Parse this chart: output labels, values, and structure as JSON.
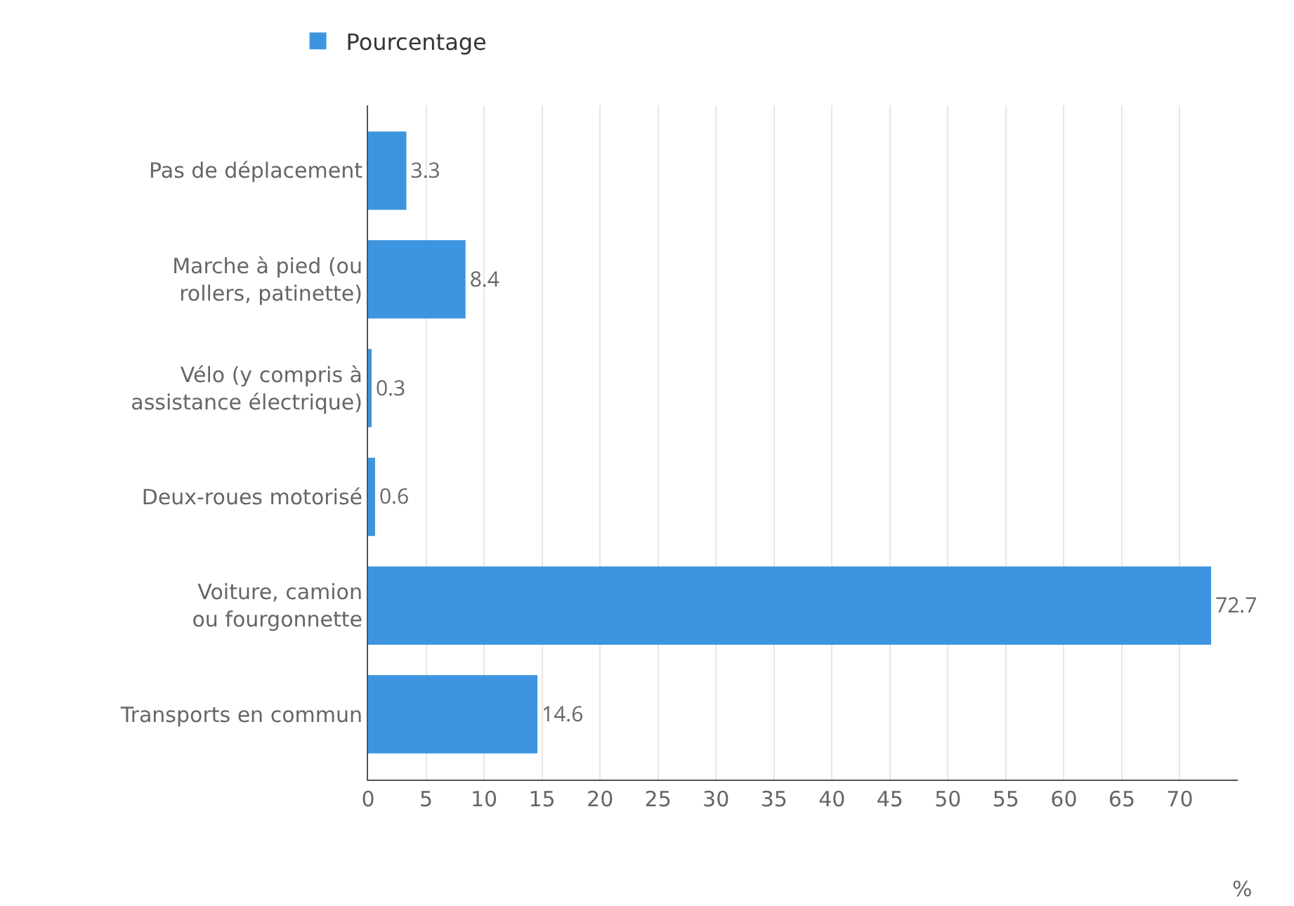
{
  "chart_data": {
    "type": "bar",
    "orientation": "horizontal",
    "categories": [
      "Pas de déplacement",
      "Marche à pied (ou rollers, patinette)",
      "Vélo (y compris à assistance électrique)",
      "Deux-roues motorisé",
      "Voiture, camion ou fourgonnette",
      "Transports en commun"
    ],
    "series": [
      {
        "name": "Pourcentage",
        "color": "#3d95e0",
        "values": [
          3.3,
          8.4,
          0.3,
          0.6,
          72.7,
          14.6
        ]
      }
    ],
    "xlim": [
      0,
      75
    ],
    "xticks": [
      0,
      5,
      10,
      15,
      20,
      25,
      30,
      35,
      40,
      45,
      50,
      55,
      60,
      65,
      70
    ],
    "xlabel": "%",
    "grid": "x",
    "legend": "top left",
    "data_labels": true
  }
}
